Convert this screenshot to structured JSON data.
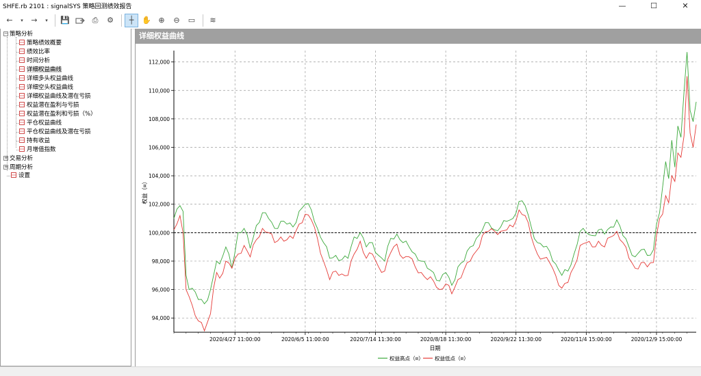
{
  "window": {
    "title": "SHFE.rb 2101 : signalSYS 策略回测绩效报告",
    "controls": [
      "—",
      "☐",
      "✕"
    ]
  },
  "toolbar": {
    "back": "←",
    "forward": "→",
    "dropdown": "▾",
    "save": "💾",
    "print": "⎙",
    "settings": "⚙",
    "crosshair": "┼",
    "hand": "✋",
    "zoom_in": "⊕",
    "zoom_out": "⊖",
    "ruler": "▭",
    "chart": "≋"
  },
  "tree": {
    "root": {
      "label": "策略分析",
      "expander": "−"
    },
    "items": [
      {
        "label": "策略绩效概要"
      },
      {
        "label": "绩效比率"
      },
      {
        "label": "时间分析"
      },
      {
        "label": "详细权益曲线"
      },
      {
        "label": "详细多头权益曲线"
      },
      {
        "label": "详细空头权益曲线"
      },
      {
        "label": "详细权益曲线及潜在亏损"
      },
      {
        "label": "权益潜在盈利与亏损"
      },
      {
        "label": "权益潜在盈利和亏损（%）"
      },
      {
        "label": "平仓权益曲线"
      },
      {
        "label": "平仓权益曲线及潜在亏损"
      },
      {
        "label": "持有收益"
      },
      {
        "label": "月增值指数"
      }
    ],
    "groups": [
      {
        "label": "交易分析",
        "expander": "+"
      },
      {
        "label": "周期分析",
        "expander": "+"
      }
    ],
    "settings": {
      "label": "设置"
    }
  },
  "panel": {
    "title": "详细权益曲线"
  },
  "chart_data": {
    "type": "line",
    "title": "",
    "xlabel": "日期",
    "ylabel": "权益（¤）",
    "ylim": [
      93000,
      112800
    ],
    "yticks": [
      "94,000",
      "96,000",
      "98,000",
      "100,000",
      "102,000",
      "104,000",
      "106,000",
      "108,000",
      "110,000",
      "112,000"
    ],
    "ytick_values": [
      94000,
      96000,
      98000,
      100000,
      102000,
      104000,
      106000,
      108000,
      110000,
      112000
    ],
    "xticks": [
      "2020/4/27 11:00:00",
      "2020/6/5 11:00:00",
      "2020/7/14 11:30:00",
      "2020/8/18 11:30:00",
      "2020/9/22 11:30:00",
      "2020/11/4 15:00:00",
      "2020/12/9 15:00:00"
    ],
    "xtick_index": [
      20,
      43,
      66,
      89,
      112,
      135,
      158
    ],
    "x_count": 172,
    "baseline": 100000,
    "grid": true,
    "legend_position": "bottom",
    "legend": [
      {
        "name": "权益高点（¤）",
        "color": "#3aa83a"
      },
      {
        "name": "权益低点（¤）",
        "color": "#e53935"
      }
    ],
    "anchors_idx": [
      0,
      2,
      3,
      4,
      5,
      6,
      8,
      10,
      12,
      13,
      14,
      15,
      17,
      19,
      21,
      23,
      25,
      27,
      29,
      31,
      33,
      35,
      37,
      39,
      41,
      43,
      45,
      47,
      49,
      51,
      53,
      55,
      57,
      59,
      61,
      63,
      65,
      67,
      69,
      71,
      73,
      75,
      77,
      79,
      81,
      83,
      85,
      87,
      89,
      91,
      93,
      95,
      97,
      99,
      101,
      103,
      105,
      107,
      109,
      111,
      113,
      115,
      117,
      119,
      121,
      123,
      125,
      127,
      129,
      131,
      133,
      135,
      137,
      139,
      141,
      143,
      145,
      147,
      149,
      151,
      153,
      155,
      157,
      158,
      159,
      160,
      161,
      162,
      163,
      164,
      165,
      166,
      167,
      168,
      169,
      170,
      171
    ],
    "series": [
      {
        "name": "权益高点（¤）",
        "anchors_val": [
          101000,
          101900,
          101500,
          97000,
          96000,
          96100,
          95300,
          95000,
          96000,
          97000,
          98000,
          97800,
          99000,
          97500,
          100000,
          100300,
          98900,
          100500,
          101400,
          101000,
          100300,
          100800,
          100600,
          100400,
          101500,
          102000,
          101600,
          100300,
          99300,
          98200,
          98400,
          98100,
          98200,
          99700,
          100000,
          99000,
          99300,
          98400,
          98000,
          99600,
          99900,
          99300,
          99000,
          98500,
          98000,
          97500,
          97200,
          96600,
          97200,
          96300,
          97600,
          98000,
          99000,
          99600,
          100200,
          100700,
          100200,
          100400,
          100800,
          101000,
          102200,
          101900,
          100400,
          99300,
          99000,
          98700,
          97800,
          97000,
          97300,
          98500,
          100100,
          100000,
          99800,
          100200,
          99900,
          100400,
          100900,
          99800,
          99000,
          98300,
          98800,
          98400,
          98800,
          100600,
          101400,
          103200,
          105000,
          103800,
          106500,
          104600,
          107500,
          106700,
          109900,
          112700,
          108600,
          107800,
          109200
        ]
      },
      {
        "name": "权益低点（¤）",
        "anchors_val": [
          100200,
          101200,
          100000,
          96000,
          95500,
          94900,
          93800,
          93100,
          94300,
          96100,
          97200,
          96800,
          98000,
          97500,
          98500,
          99100,
          98300,
          99500,
          100300,
          100000,
          99300,
          99700,
          99500,
          99600,
          100600,
          101300,
          100900,
          99600,
          98000,
          96700,
          97300,
          97100,
          97000,
          98500,
          99400,
          98200,
          98500,
          97600,
          97300,
          98600,
          99200,
          98200,
          98300,
          97600,
          97200,
          96700,
          96600,
          96000,
          96400,
          95700,
          96700,
          97400,
          98000,
          98700,
          99800,
          100100,
          100100,
          100100,
          100200,
          100400,
          101600,
          101200,
          99700,
          98500,
          98200,
          97900,
          97000,
          96100,
          96500,
          97600,
          99100,
          99300,
          99000,
          99400,
          99000,
          99700,
          100100,
          99300,
          98200,
          97500,
          97900,
          97600,
          97900,
          99800,
          101000,
          101300,
          102600,
          102100,
          104000,
          103600,
          105600,
          105300,
          106800,
          111000,
          107000,
          106000,
          107600
        ]
      }
    ]
  }
}
